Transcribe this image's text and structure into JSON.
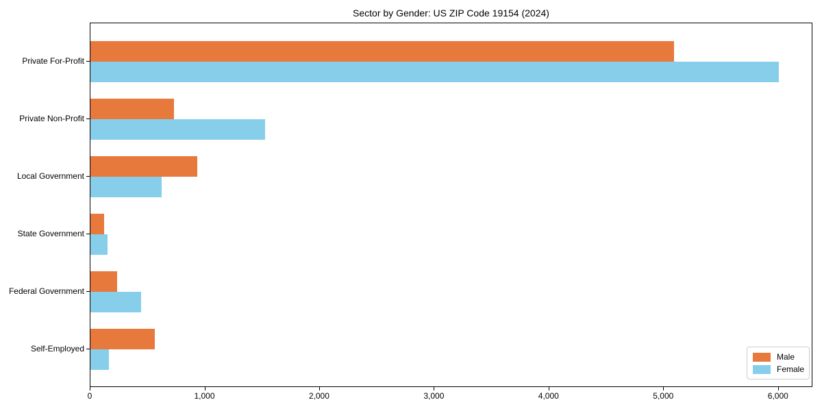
{
  "figure": {
    "title": "Sector by Gender: US ZIP Code 19154 (2024)"
  },
  "chart_data": {
    "type": "bar",
    "orientation": "horizontal",
    "title": "Sector by Gender: US ZIP Code 19154 (2024)",
    "categories": [
      "Private For-Profit",
      "Private Non-Profit",
      "Local Government",
      "State Government",
      "Federal Government",
      "Self-Employed"
    ],
    "series": [
      {
        "name": "Male",
        "color": "#e8793d",
        "values": [
          5090,
          730,
          930,
          120,
          230,
          560
        ]
      },
      {
        "name": "Female",
        "color": "#87ceeb",
        "values": [
          6000,
          1520,
          620,
          150,
          440,
          160
        ]
      }
    ],
    "xlabel": "",
    "ylabel": "",
    "xlim": [
      0,
      6300
    ],
    "xticks": [
      0,
      1000,
      2000,
      3000,
      4000,
      5000,
      6000
    ],
    "xtick_labels": [
      "0",
      "1,000",
      "2,000",
      "3,000",
      "4,000",
      "5,000",
      "6,000"
    ],
    "grid": false,
    "legend": {
      "position": "lower right"
    },
    "axis_color": "#000000",
    "background_color": "#ffffff"
  }
}
